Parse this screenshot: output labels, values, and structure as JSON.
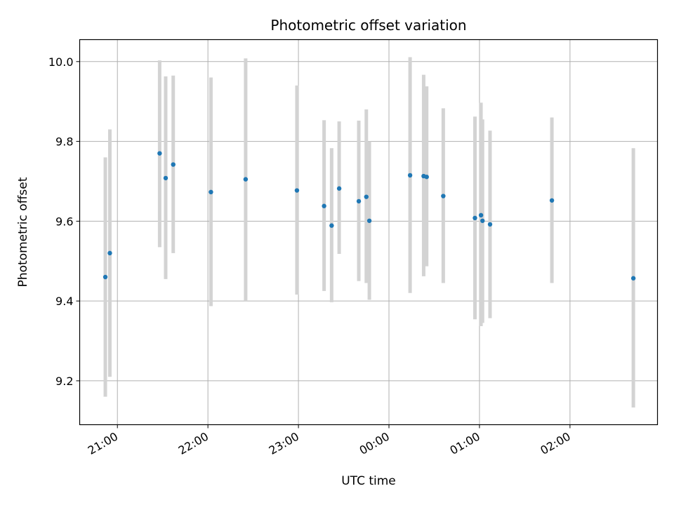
{
  "chart_data": {
    "type": "scatter",
    "title": "Photometric offset variation",
    "xlabel": "UTC time",
    "ylabel": "Photometric offset",
    "x_ticks": [
      "21:00",
      "22:00",
      "23:00",
      "00:00",
      "01:00",
      "02:00"
    ],
    "y_ticks": [
      "9.2",
      "9.4",
      "9.6",
      "9.8",
      "10.0"
    ],
    "xlim": [
      "20:35",
      "02:58"
    ],
    "ylim": [
      9.09,
      10.055
    ],
    "grid": true,
    "colors": {
      "point": "#1f77b4",
      "errorbar": "#d3d3d3"
    },
    "points": [
      {
        "x": "20:52",
        "y": 9.46,
        "ylow": 9.16,
        "yhigh": 9.76
      },
      {
        "x": "20:55",
        "y": 9.52,
        "ylow": 9.21,
        "yhigh": 9.83
      },
      {
        "x": "21:28",
        "y": 9.77,
        "ylow": 9.535,
        "yhigh": 10.003
      },
      {
        "x": "21:32",
        "y": 9.708,
        "ylow": 9.455,
        "yhigh": 9.963
      },
      {
        "x": "21:37",
        "y": 9.742,
        "ylow": 9.52,
        "yhigh": 9.965
      },
      {
        "x": "22:02",
        "y": 9.673,
        "ylow": 9.387,
        "yhigh": 9.96
      },
      {
        "x": "22:25",
        "y": 9.705,
        "ylow": 9.4,
        "yhigh": 10.008
      },
      {
        "x": "22:59",
        "y": 9.677,
        "ylow": 9.416,
        "yhigh": 9.94
      },
      {
        "x": "23:17",
        "y": 9.638,
        "ylow": 9.425,
        "yhigh": 9.853
      },
      {
        "x": "23:22",
        "y": 9.589,
        "ylow": 9.397,
        "yhigh": 9.783
      },
      {
        "x": "23:27",
        "y": 9.682,
        "ylow": 9.518,
        "yhigh": 9.85
      },
      {
        "x": "23:40",
        "y": 9.65,
        "ylow": 9.45,
        "yhigh": 9.852
      },
      {
        "x": "23:45",
        "y": 9.661,
        "ylow": 9.445,
        "yhigh": 9.88
      },
      {
        "x": "23:47",
        "y": 9.601,
        "ylow": 9.403,
        "yhigh": 9.8
      },
      {
        "x": "00:14",
        "y": 9.715,
        "ylow": 9.42,
        "yhigh": 10.011
      },
      {
        "x": "00:23",
        "y": 9.713,
        "ylow": 9.462,
        "yhigh": 9.967
      },
      {
        "x": "00:25",
        "y": 9.711,
        "ylow": 9.487,
        "yhigh": 9.938
      },
      {
        "x": "00:36",
        "y": 9.663,
        "ylow": 9.445,
        "yhigh": 9.883
      },
      {
        "x": "00:57",
        "y": 9.608,
        "ylow": 9.354,
        "yhigh": 9.862
      },
      {
        "x": "01:01",
        "y": 9.615,
        "ylow": 9.337,
        "yhigh": 9.897
      },
      {
        "x": "01:02",
        "y": 9.601,
        "ylow": 9.345,
        "yhigh": 9.855
      },
      {
        "x": "01:07",
        "y": 9.592,
        "ylow": 9.357,
        "yhigh": 9.827
      },
      {
        "x": "01:48",
        "y": 9.652,
        "ylow": 9.445,
        "yhigh": 9.86
      },
      {
        "x": "02:42",
        "y": 9.457,
        "ylow": 9.133,
        "yhigh": 9.783
      }
    ]
  }
}
